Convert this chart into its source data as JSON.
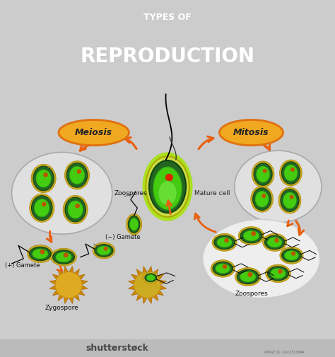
{
  "title_line1": "TYPES OF",
  "title_line2": "REPRODUCTION",
  "title_bg_color": "#cc2222",
  "title_text_color": "#ffffff",
  "body_bg_color": "#cccccc",
  "label_meiosis": "Meiosis",
  "label_mitosis": "Mitosis",
  "label_mature_cell": "Mature cell",
  "label_zoospores_top": "Zoospores",
  "label_zoospores_bottom": "Zoospores",
  "label_gamete_neg": "(−) Gamete",
  "label_gamete_pos": "(+) Gamete",
  "label_zygospore": "Zygospore",
  "orange_color": "#e86010",
  "green_outer": "#ccdd44",
  "green_dark": "#226622",
  "green_bright": "#44cc11",
  "green_mid": "#33aa11",
  "orange_spore": "#cc8800",
  "shutterstock_text": "shutterstøck",
  "image_id": "IMAGE ID  1672313644"
}
